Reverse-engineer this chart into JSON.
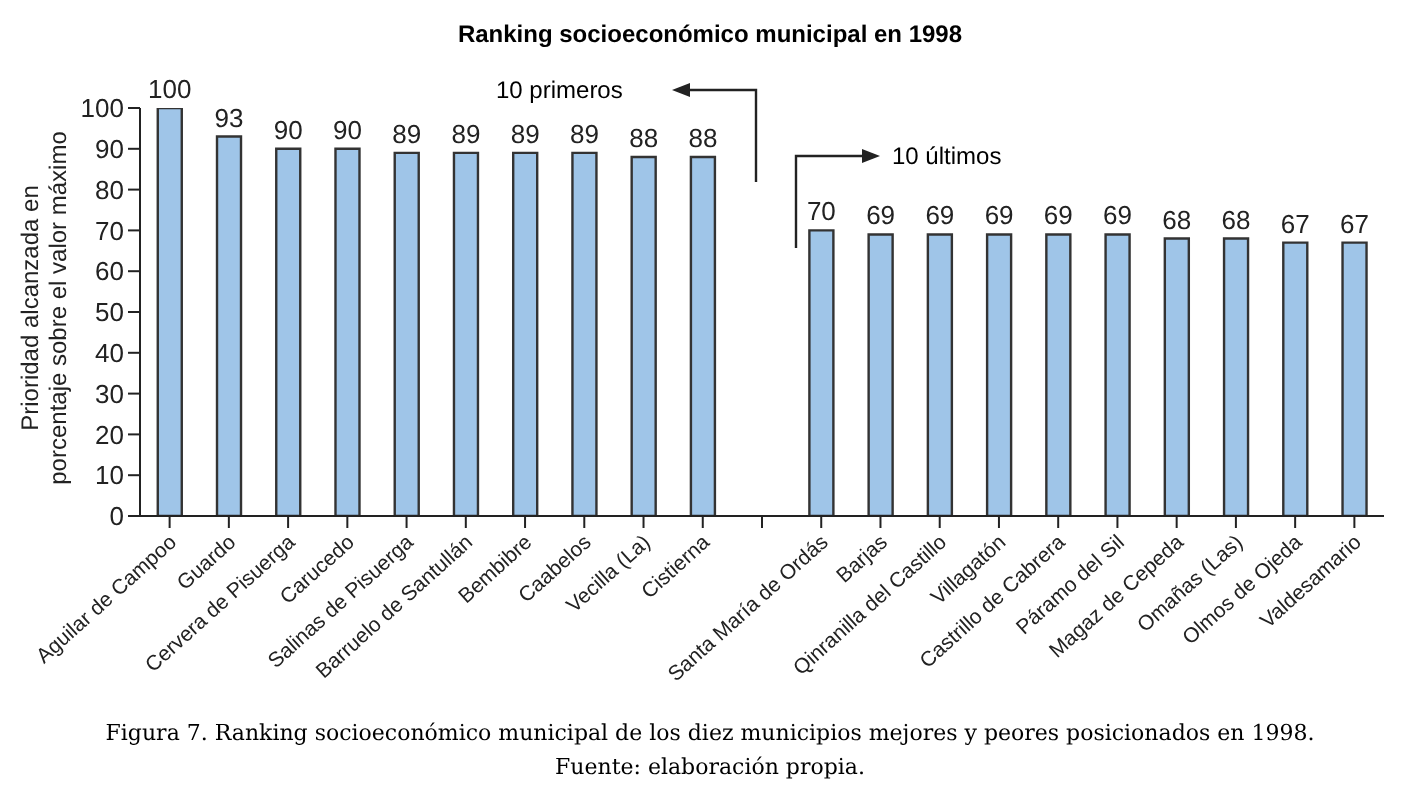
{
  "chart_data": {
    "type": "bar",
    "title": "Ranking socioeconómico municipal en 1998",
    "ylabel": "Prioridad alcanzada en porcentaje sobre el valor máximo",
    "categories": [
      "Aguilar de Campoo",
      "Guardo",
      "Cervera de  Pisuerga",
      "Carucedo",
      "Salinas de  Pisuerga",
      "Barruelo de Santullán",
      "Bembibre",
      "Caabelos",
      "Vecilla (La)",
      "Cistierna",
      null,
      "Santa María de Ordás",
      "Barjas",
      "Qinranilla del Castillo",
      "Villagatón",
      "Castrillo de Cabrera",
      "Páramo del Sil",
      "Magaz de Cepeda",
      "Omañas (Las)",
      "Olmos de Ojeda",
      "Valdesamario"
    ],
    "values": [
      100,
      93,
      90,
      90,
      89,
      89,
      89,
      89,
      88,
      88,
      null,
      70,
      69,
      69,
      69,
      69,
      69,
      68,
      68,
      67,
      67
    ],
    "color": "#9fc5e8",
    "ylim": [
      0,
      100
    ],
    "yticks": [
      0,
      10,
      20,
      30,
      40,
      50,
      60,
      70,
      80,
      90,
      100
    ],
    "data_labels": true,
    "grid": false,
    "annotations": [
      "10 primeros",
      "10 últimos",
      "Figura 7.   Ranking socioeconómico municipal de los diez municipios mejores y peores posicionados en 1998.",
      "Fuente: elaboración propia."
    ]
  }
}
